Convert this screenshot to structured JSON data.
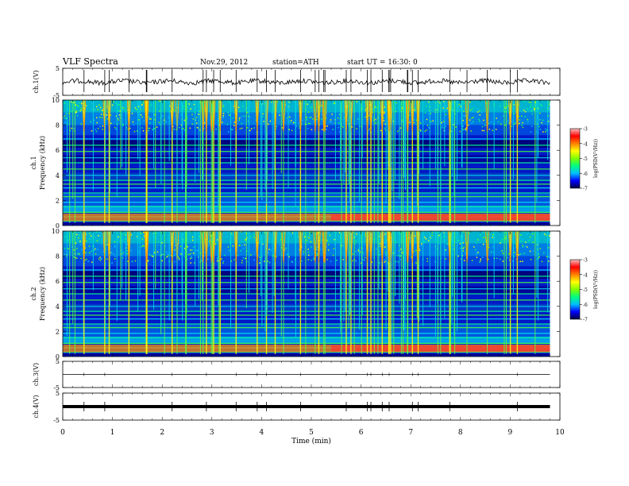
{
  "header": {
    "title": "VLF  Spectra",
    "date": "Nov.29, 2012",
    "station": "station=ATH",
    "start": "start  UT  =   16:30: 0"
  },
  "chart_data": {
    "type": "heatmap",
    "title": "VLF  Spectra",
    "xlabel": "Time  (min)",
    "xlim": [
      0,
      10
    ],
    "x_ticks": [
      "0",
      "1",
      "2",
      "3",
      "4",
      "5",
      "6",
      "7",
      "8",
      "9",
      "10"
    ],
    "record_end_min": 9.8,
    "panels": [
      {
        "id": "ch1-waveform",
        "type": "line",
        "ylabel": "ch.1(V)",
        "ylim": [
          -5,
          5
        ],
        "y_ticks": [
          "5",
          "-5"
        ],
        "trace_level": "noisy"
      },
      {
        "id": "ch1-spectrogram",
        "type": "heatmap",
        "ylabel_channel": "ch.1",
        "ylabel": "Frequency  (kHz)",
        "ylim": [
          0,
          10
        ],
        "y_ticks": [
          "0",
          "2",
          "4",
          "6",
          "8",
          "10"
        ],
        "colorbar": {
          "label": "log(PSD(V²/Hz))",
          "range": [
            -7,
            -3
          ],
          "ticks": [
            "-3",
            "-4",
            "-5",
            "-6",
            "-7"
          ]
        },
        "description": "broadband sferics with horizontal VLF transmitter lines; strong band near 0.5-1 kHz, intensifying after 5.4 min"
      },
      {
        "id": "ch2-spectrogram",
        "type": "heatmap",
        "ylabel_channel": "ch.2",
        "ylabel": "Frequency  (kHz)",
        "ylim": [
          0,
          10
        ],
        "y_ticks": [
          "0",
          "2",
          "4",
          "6",
          "8",
          "10"
        ],
        "colorbar": {
          "label": "log(PSD(V²/Hz))",
          "range": [
            -7,
            -3
          ],
          "ticks": [
            "-3",
            "-4",
            "-5",
            "-6",
            "-7"
          ]
        }
      },
      {
        "id": "ch3-waveform",
        "type": "line",
        "ylabel": "ch.3(V)",
        "ylim": [
          -5,
          5
        ],
        "y_ticks": [
          "5",
          "-5"
        ],
        "trace_level": "flat"
      },
      {
        "id": "ch4-waveform",
        "type": "line",
        "ylabel": "ch.4(V)",
        "ylim": [
          -5,
          5
        ],
        "y_ticks": [
          "5",
          "-5"
        ],
        "trace_level": "thick-flat"
      }
    ],
    "transmitter_lines_khz": [
      0.35,
      0.7,
      1.05,
      1.5,
      1.85,
      2.3,
      2.6,
      3.0,
      3.3,
      3.6,
      4.0,
      4.5,
      5.0,
      5.4,
      5.9,
      6.4,
      6.9
    ],
    "colormap": [
      "#000040",
      "#0000ff",
      "#00c0ff",
      "#00ff80",
      "#80ff00",
      "#ffff00",
      "#ff8000",
      "#ff0000",
      "#ffc0c0"
    ]
  }
}
